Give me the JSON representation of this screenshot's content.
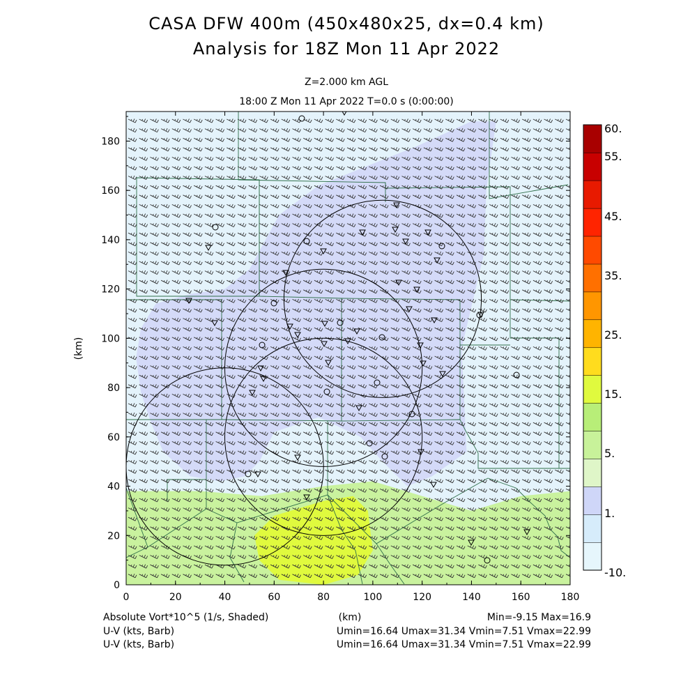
{
  "figure": {
    "title_line1": "CASA DFW 400m (450x480x25, dx=0.4 km)",
    "title_line2": "Analysis for 18Z Mon 11 Apr 2022",
    "level_label": "Z=2.000 km AGL",
    "time_label": "18:00 Z Mon 11 Apr 2022    T=0.0 s (0:00:00)"
  },
  "footer": {
    "field_label": "Absolute Vort*10^5 (1/s, Shaded)",
    "xunit_label": "(km)",
    "minmax": "Min=-9.15 Max=16.9",
    "barb_label_1": "U-V (kts, Barb)",
    "barb_stats_1": "Umin=16.64 Umax=31.34 Vmin=7.51 Vmax=22.99",
    "barb_label_2": "U-V (kts, Barb)",
    "barb_stats_2": "Umin=16.64 Umax=31.34 Vmin=7.51 Vmax=22.99"
  },
  "chart_data": {
    "type": "heatmap",
    "title": "CASA DFW 400m (450x480x25, dx=0.4 km)",
    "subtitle": "Analysis for 18Z Mon 11 Apr 2022",
    "xlabel": "(km)",
    "ylabel": "(km)",
    "xlim": [
      0,
      180
    ],
    "ylim": [
      0,
      192
    ],
    "x_ticks": [
      0,
      20,
      40,
      60,
      80,
      100,
      120,
      140,
      160,
      180
    ],
    "y_ticks": [
      0,
      20,
      40,
      60,
      80,
      100,
      120,
      140,
      160,
      180
    ],
    "x_tick_labels": [
      "0",
      "20",
      "40",
      "60",
      "80",
      "100",
      "120",
      "140",
      "160",
      "180"
    ],
    "y_tick_labels": [
      "0",
      "20",
      "40",
      "60",
      "80",
      "100",
      "120",
      "140",
      "160",
      "180"
    ],
    "colorbar": {
      "labels": [
        {
          "value": 60,
          "text": "60."
        },
        {
          "value": 55,
          "text": "55."
        },
        {
          "value": 45,
          "text": "45."
        },
        {
          "value": 35,
          "text": "35."
        },
        {
          "value": 25,
          "text": "25."
        },
        {
          "value": 15,
          "text": "15."
        },
        {
          "value": 5,
          "text": "5."
        },
        {
          "value": 1,
          "text": "1."
        },
        {
          "value": -10,
          "text": "-10."
        }
      ],
      "colors": [
        "#e6f6fc",
        "#d6ecfb",
        "#cfd6f8",
        "#dff6c8",
        "#c8f29a",
        "#b8ee78",
        "#e0fa3e",
        "#ffdc1e",
        "#ffb400",
        "#ff9600",
        "#ff7000",
        "#ff4a00",
        "#ff2400",
        "#e81a00",
        "#c80000",
        "#a80000"
      ]
    },
    "shaded_regions": [
      {
        "level": "-10 to 1",
        "color": "#e4f3fb",
        "polygon": [
          [
            152,
            192
          ],
          [
            180,
            192
          ],
          [
            180,
            48
          ],
          [
            166,
            49
          ],
          [
            140,
            52
          ],
          [
            136,
            96
          ],
          [
            146,
            134
          ],
          [
            145,
            152
          ],
          [
            150,
            170
          ]
        ]
      },
      {
        "level": "1 to 5",
        "color": "#d4daf8",
        "polygon": [
          [
            50,
            128
          ],
          [
            62,
            150
          ],
          [
            78,
            162
          ],
          [
            98,
            170
          ],
          [
            118,
            178
          ],
          [
            140,
            188
          ],
          [
            150,
            188
          ],
          [
            146,
            160
          ],
          [
            145,
            134
          ],
          [
            136,
            96
          ],
          [
            138,
            54
          ],
          [
            124,
            44
          ],
          [
            114,
            40
          ],
          [
            104,
            50
          ],
          [
            95,
            60
          ],
          [
            78,
            68
          ],
          [
            60,
            62
          ],
          [
            54,
            50
          ],
          [
            48,
            44
          ],
          [
            38,
            42
          ],
          [
            26,
            44
          ],
          [
            15,
            54
          ],
          [
            10,
            66
          ],
          [
            6,
            78
          ],
          [
            4,
            92
          ],
          [
            6,
            104
          ],
          [
            12,
            114
          ],
          [
            26,
            118
          ],
          [
            40,
            120
          ]
        ]
      },
      {
        "level": "5 to 10",
        "color": "#c9f29e",
        "polygon": [
          [
            0,
            38
          ],
          [
            30,
            38
          ],
          [
            55,
            36
          ],
          [
            80,
            40
          ],
          [
            100,
            42
          ],
          [
            120,
            36
          ],
          [
            140,
            30
          ],
          [
            160,
            36
          ],
          [
            180,
            38
          ],
          [
            180,
            0
          ],
          [
            0,
            0
          ]
        ]
      },
      {
        "level": "10 to 15",
        "color": "#e0fa3e",
        "polygon": [
          [
            60,
            28
          ],
          [
            80,
            34
          ],
          [
            92,
            36
          ],
          [
            98,
            30
          ],
          [
            100,
            14
          ],
          [
            94,
            4
          ],
          [
            80,
            0
          ],
          [
            62,
            2
          ],
          [
            54,
            10
          ],
          [
            52,
            20
          ]
        ]
      }
    ],
    "wind_barbs": {
      "u_min": 16.64,
      "u_max": 31.34,
      "v_min": 7.51,
      "v_max": 22.99,
      "units": "kts"
    },
    "radar_range_rings": [
      {
        "center": [
          40,
          48
        ],
        "radius_km": 40
      },
      {
        "center": [
          80,
          88
        ],
        "radius_km": 40
      },
      {
        "center": [
          104,
          116
        ],
        "radius_km": 40
      },
      {
        "center": [
          80,
          60
        ],
        "radius_km": 40
      }
    ]
  }
}
